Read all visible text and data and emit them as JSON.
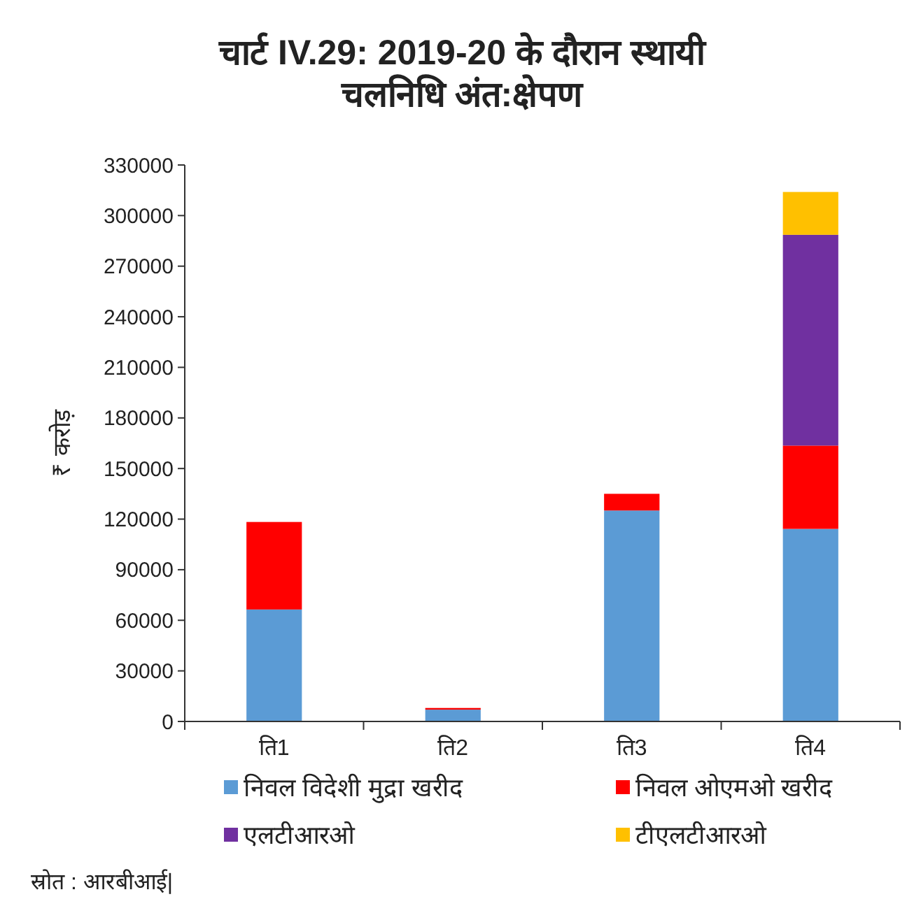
{
  "chart_data": {
    "type": "bar",
    "title": "चार्ट IV.29: 2019-20 के दौरान स्थायी चलनिधि अंत:क्षेपण",
    "ylabel": "₹ करोड़",
    "categories": [
      "ति1",
      "ति2",
      "ति3",
      "ति4"
    ],
    "stacked": true,
    "series": [
      {
        "name": "निवल विदेशी मुद्रा खरीद",
        "color": "#5b9bd5",
        "values": [
          66400,
          7000,
          125100,
          114200
        ]
      },
      {
        "name": "निवल ओएमओ खरीद",
        "color": "#ff0000",
        "values": [
          51900,
          1000,
          9900,
          49400
        ]
      },
      {
        "name": "एलटीआरओ",
        "color": "#7030a0",
        "values": [
          0,
          0,
          0,
          125000
        ]
      },
      {
        "name": "टीएलटीआरओ",
        "color": "#ffc000",
        "values": [
          0,
          0,
          0,
          25400
        ]
      }
    ],
    "ylim": [
      0,
      330000
    ],
    "yticks": [
      0,
      30000,
      60000,
      90000,
      120000,
      150000,
      180000,
      210000,
      240000,
      270000,
      300000,
      330000
    ],
    "grid": false,
    "legend": "bottom",
    "annotations": [
      "स्रोत : आरबीआई|"
    ]
  }
}
